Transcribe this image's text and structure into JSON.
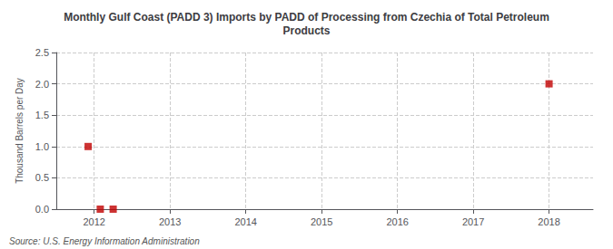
{
  "chart_data": {
    "type": "scatter",
    "title": "Monthly Gulf Coast (PADD 3) Imports by PADD of Processing from Czechia of Total Petroleum\nProducts",
    "ylabel": "Thousand Barrels per Day",
    "annotations": [
      "Source: U.S. Energy Information Administration"
    ],
    "x": [
      2011.92,
      2012.08,
      2012.25,
      2018.0
    ],
    "values": [
      1.0,
      0.0,
      0.0,
      2.0
    ],
    "color": "#c00000",
    "marker": "square",
    "xlim": [
      2011.5,
      2018.58
    ],
    "xticks": [
      2012,
      2013,
      2014,
      2015,
      2016,
      2017,
      2018
    ],
    "ylim": [
      0.0,
      2.5
    ],
    "yticks": [
      {
        "value": 0.0,
        "label": "0.0"
      },
      0.5,
      {
        "value": 1.0,
        "label": "1.0"
      },
      1.5,
      {
        "value": 2.0,
        "label": "2.0"
      },
      2.5
    ],
    "grid": true
  }
}
